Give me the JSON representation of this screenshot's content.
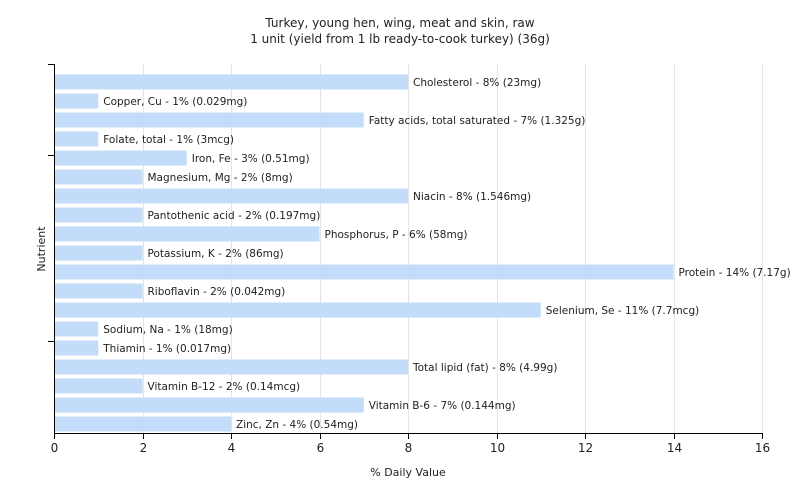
{
  "chart_data": {
    "type": "bar",
    "orientation": "horizontal",
    "title": "Turkey, young hen, wing, meat and skin, raw",
    "subtitle": "1 unit (yield from 1 lb ready-to-cook turkey) (36g)",
    "xlabel": "% Daily Value",
    "ylabel": "Nutrient",
    "xlim": [
      0,
      16
    ],
    "xticks": [
      "0",
      "2",
      "4",
      "6",
      "8",
      "10",
      "12",
      "14",
      "16"
    ],
    "grid": "vertical",
    "bar_color": "#c2dcfa",
    "categories": [
      "Cholesterol",
      "Copper, Cu",
      "Fatty acids, total saturated",
      "Folate, total",
      "Iron, Fe",
      "Magnesium, Mg",
      "Niacin",
      "Pantothenic acid",
      "Phosphorus, P",
      "Potassium, K",
      "Protein",
      "Riboflavin",
      "Selenium, Se",
      "Sodium, Na",
      "Thiamin",
      "Total lipid (fat)",
      "Vitamin B-12",
      "Vitamin B-6",
      "Zinc, Zn"
    ],
    "values": [
      8,
      1,
      7,
      1,
      3,
      2,
      8,
      2,
      6,
      2,
      14,
      2,
      11,
      1,
      1,
      8,
      2,
      7,
      4
    ],
    "labels": [
      "Cholesterol - 8% (23mg)",
      "Copper, Cu - 1% (0.029mg)",
      "Fatty acids, total saturated - 7% (1.325g)",
      "Folate, total - 1% (3mcg)",
      "Iron, Fe - 3% (0.51mg)",
      "Magnesium, Mg - 2% (8mg)",
      "Niacin - 8% (1.546mg)",
      "Pantothenic acid - 2% (0.197mg)",
      "Phosphorus, P - 6% (58mg)",
      "Potassium, K - 2% (86mg)",
      "Protein - 14% (7.17g)",
      "Riboflavin - 2% (0.042mg)",
      "Selenium, Se - 11% (7.7mcg)",
      "Sodium, Na - 1% (18mg)",
      "Thiamin - 1% (0.017mg)",
      "Total lipid (fat) - 8% (4.99g)",
      "Vitamin B-12 - 2% (0.14mcg)",
      "Vitamin B-6 - 7% (0.144mg)",
      "Zinc, Zn - 4% (0.54mg)"
    ]
  }
}
